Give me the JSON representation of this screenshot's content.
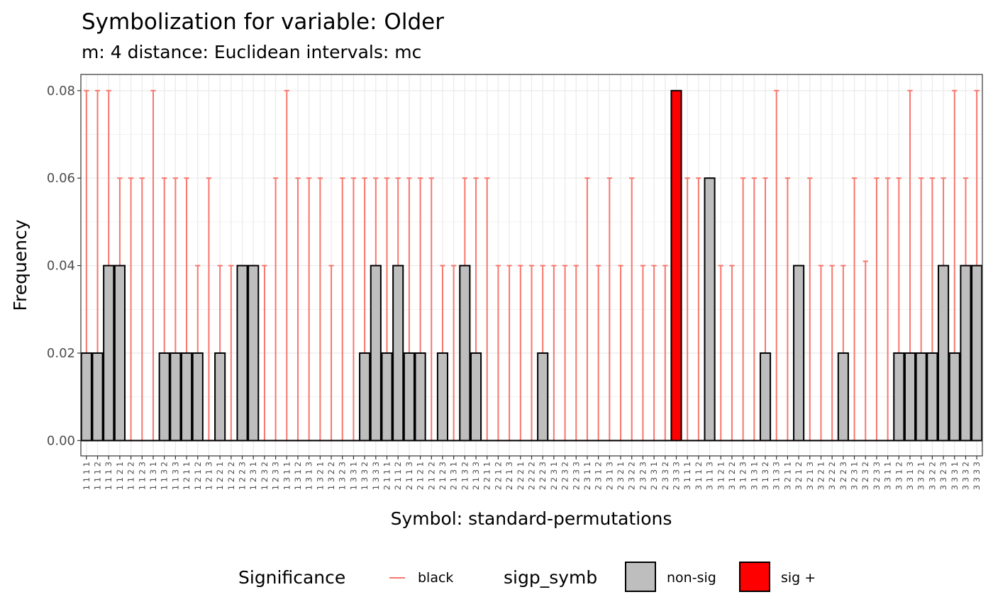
{
  "chart_data": {
    "type": "bar",
    "title": "Symbolization for variable: Older",
    "subtitle": "m: 4  distance:  Euclidean  intervals:  mc",
    "xlabel": "Symbol: standard-permutations",
    "ylabel": "Frequency",
    "ylim": [
      -0.0035,
      0.0837
    ],
    "yticks": [
      "0.00",
      "0.02",
      "0.04",
      "0.06",
      "0.08"
    ],
    "ytick_values": [
      0,
      0.02,
      0.04,
      0.06,
      0.08
    ],
    "grid": true,
    "legend_position": "bottom",
    "categories": [
      "1111",
      "1112",
      "1113",
      "1121",
      "1122",
      "1123",
      "1131",
      "1132",
      "1133",
      "1211",
      "1212",
      "1213",
      "1221",
      "1222",
      "1223",
      "1231",
      "1232",
      "1233",
      "1311",
      "1312",
      "1313",
      "1321",
      "1322",
      "1323",
      "1331",
      "1332",
      "1333",
      "2111",
      "2112",
      "2113",
      "2121",
      "2122",
      "2123",
      "2131",
      "2132",
      "2133",
      "2211",
      "2212",
      "2213",
      "2221",
      "2222",
      "2223",
      "2231",
      "2232",
      "2233",
      "2311",
      "2312",
      "2313",
      "2321",
      "2322",
      "2323",
      "2331",
      "2332",
      "2333",
      "3111",
      "3112",
      "3113",
      "3121",
      "3122",
      "3123",
      "3131",
      "3132",
      "3133",
      "3211",
      "3212",
      "3213",
      "3221",
      "3222",
      "3223",
      "3231",
      "3232",
      "3233",
      "3311",
      "3312",
      "3313",
      "3321",
      "3322",
      "3323",
      "3331",
      "3332",
      "3333"
    ],
    "series": [
      {
        "name": "Frequency",
        "values": [
          0.02,
          0.02,
          0.04,
          0.04,
          0,
          0,
          0,
          0.02,
          0.02,
          0.02,
          0.02,
          0,
          0.02,
          0,
          0.04,
          0.04,
          0,
          0,
          0,
          0,
          0,
          0,
          0,
          0,
          0,
          0.02,
          0.04,
          0.02,
          0.04,
          0.02,
          0.02,
          0,
          0.02,
          0,
          0.04,
          0.02,
          0,
          0,
          0,
          0,
          0,
          0.02,
          0,
          0,
          0,
          0,
          0,
          0,
          0,
          0,
          0,
          0,
          0,
          0.08,
          0,
          0,
          0.06,
          0,
          0,
          0,
          0,
          0.02,
          0,
          0,
          0.04,
          0,
          0,
          0,
          0.02,
          0,
          0,
          0,
          0,
          0.02,
          0.02,
          0.02,
          0.02,
          0.04,
          0.02,
          0.04,
          0.04
        ],
        "significance": [
          "non-sig",
          "non-sig",
          "non-sig",
          "non-sig",
          "non-sig",
          "non-sig",
          "non-sig",
          "non-sig",
          "non-sig",
          "non-sig",
          "non-sig",
          "non-sig",
          "non-sig",
          "non-sig",
          "non-sig",
          "non-sig",
          "non-sig",
          "non-sig",
          "non-sig",
          "non-sig",
          "non-sig",
          "non-sig",
          "non-sig",
          "non-sig",
          "non-sig",
          "non-sig",
          "non-sig",
          "non-sig",
          "non-sig",
          "non-sig",
          "non-sig",
          "non-sig",
          "non-sig",
          "non-sig",
          "non-sig",
          "non-sig",
          "non-sig",
          "non-sig",
          "non-sig",
          "non-sig",
          "non-sig",
          "non-sig",
          "non-sig",
          "non-sig",
          "non-sig",
          "non-sig",
          "non-sig",
          "non-sig",
          "non-sig",
          "non-sig",
          "non-sig",
          "non-sig",
          "non-sig",
          "sig +",
          "non-sig",
          "non-sig",
          "non-sig",
          "non-sig",
          "non-sig",
          "non-sig",
          "non-sig",
          "non-sig",
          "non-sig",
          "non-sig",
          "non-sig",
          "non-sig",
          "non-sig",
          "non-sig",
          "non-sig",
          "non-sig",
          "non-sig",
          "non-sig",
          "non-sig",
          "non-sig",
          "non-sig",
          "non-sig",
          "non-sig",
          "non-sig",
          "non-sig",
          "non-sig",
          "non-sig"
        ]
      }
    ],
    "error_bars": {
      "lower": 0,
      "upper": [
        0.08,
        0.08,
        0.08,
        0.06,
        0.06,
        0.06,
        0.08,
        0.06,
        0.06,
        0.06,
        0.04,
        0.06,
        0.04,
        0.04,
        0.04,
        0.04,
        0.04,
        0.06,
        0.08,
        0.06,
        0.06,
        0.06,
        0.04,
        0.06,
        0.06,
        0.06,
        0.06,
        0.06,
        0.06,
        0.06,
        0.06,
        0.06,
        0.04,
        0.04,
        0.06,
        0.06,
        0.06,
        0.04,
        0.04,
        0.04,
        0.04,
        0.04,
        0.04,
        0.04,
        0.04,
        0.06,
        0.04,
        0.06,
        0.04,
        0.06,
        0.04,
        0.04,
        0.04,
        0.06,
        0.06,
        0.06,
        0.06,
        0.04,
        0.04,
        0.06,
        0.06,
        0.06,
        0.08,
        0.06,
        0.04,
        0.06,
        0.04,
        0.04,
        0.04,
        0.06,
        0.041,
        0.06,
        0.06,
        0.06,
        0.08,
        0.06,
        0.06,
        0.06,
        0.08,
        0.06,
        0.08
      ]
    },
    "legend": {
      "line_title": "Significance",
      "line_label": "black",
      "fill_title": "sigp_symb",
      "fill_labels": [
        "non-sig",
        "sig +"
      ]
    },
    "colors": {
      "non-sig": "#BEBEBE",
      "sig +": "#FF0000",
      "error_bar": "#F8766D",
      "bar_outline": "#000000",
      "grid_major": "#EBEBEB",
      "panel_border": "#333333",
      "tick_text": "#4D4D4D"
    }
  }
}
